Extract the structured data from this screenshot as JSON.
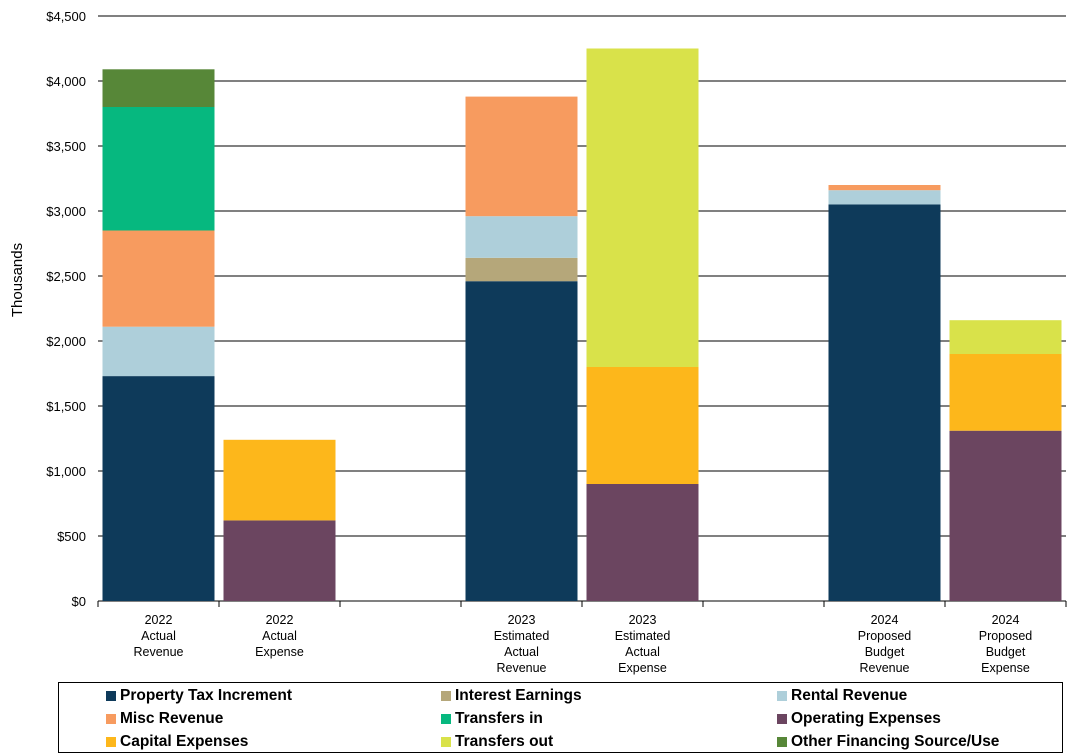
{
  "chart_data": {
    "type": "bar",
    "stacked": true,
    "ylabel": "Thousands",
    "xlabel": "",
    "ylim": [
      0,
      4500
    ],
    "yticks": [
      0,
      500,
      1000,
      1500,
      2000,
      2500,
      3000,
      3500,
      4000,
      4500
    ],
    "ytick_labels": [
      "$0",
      "$500",
      "$1,000",
      "$1,500",
      "$2,000",
      "$2,500",
      "$3,000",
      "$3,500",
      "$4,000",
      "$4,500"
    ],
    "grid": "horizontal",
    "legend_position": "bottom",
    "categories": [
      [
        "2022",
        "Actual",
        "Revenue"
      ],
      [
        "2022",
        "Actual",
        "Expense"
      ],
      [
        "2023",
        "Estimated",
        "Actual",
        "Revenue"
      ],
      [
        "2023",
        "Estimated",
        "Actual",
        "Expense"
      ],
      [
        "2024",
        "Proposed",
        "Budget",
        "Revenue"
      ],
      [
        "2024",
        "Proposed",
        "Budget",
        "Expense"
      ]
    ],
    "series": [
      {
        "name": "Property Tax Increment",
        "color": "#0e3a5a",
        "values": [
          1730,
          0,
          2460,
          0,
          3050,
          0
        ]
      },
      {
        "name": "Interest Earnings",
        "color": "#b5a77a",
        "values": [
          0,
          0,
          180,
          0,
          0,
          0
        ]
      },
      {
        "name": "Rental Revenue",
        "color": "#aecfda",
        "values": [
          380,
          0,
          320,
          0,
          110,
          0
        ]
      },
      {
        "name": "Misc Revenue",
        "color": "#f79b5f",
        "values": [
          740,
          0,
          920,
          0,
          40,
          0
        ]
      },
      {
        "name": "Transfers in",
        "color": "#06b87f",
        "values": [
          950,
          0,
          0,
          0,
          0,
          0
        ]
      },
      {
        "name": "Operating Expenses",
        "color": "#6b4560",
        "values": [
          0,
          620,
          0,
          900,
          0,
          1310
        ]
      },
      {
        "name": "Capital Expenses",
        "color": "#fdb71b",
        "values": [
          0,
          620,
          0,
          900,
          0,
          590
        ]
      },
      {
        "name": "Transfers out",
        "color": "#d9e24a",
        "values": [
          0,
          0,
          0,
          2450,
          0,
          260
        ]
      },
      {
        "name": "Other Financing Source/Use",
        "color": "#578738",
        "values": [
          290,
          0,
          0,
          0,
          0,
          0
        ]
      }
    ]
  }
}
